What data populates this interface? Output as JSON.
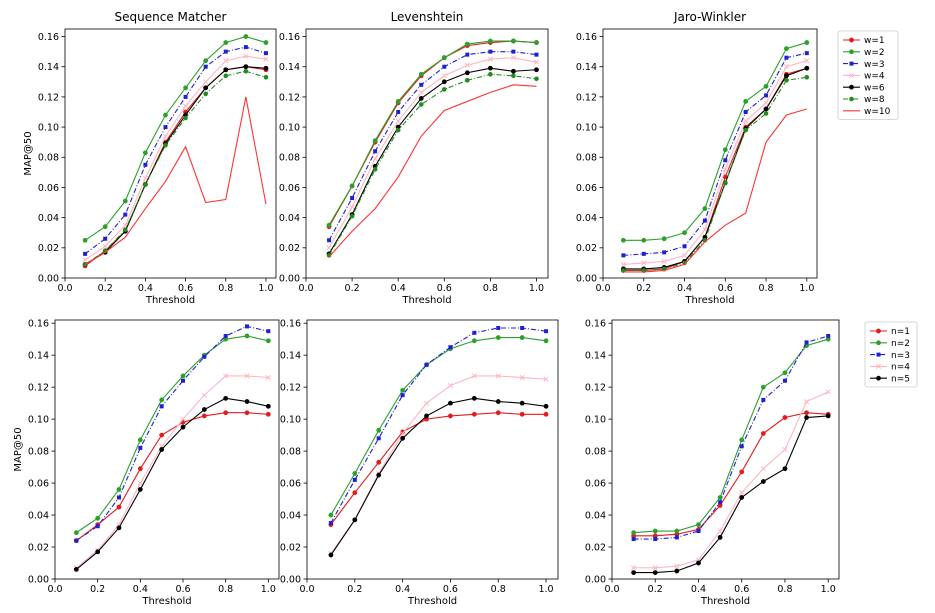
{
  "figure": {
    "x_tick_labels": [
      "0.0",
      "0.2",
      "0.4",
      "0.6",
      "0.8",
      "1.0"
    ],
    "y_tick_labels": [
      "0.00",
      "0.02",
      "0.04",
      "0.06",
      "0.08",
      "0.10",
      "0.12",
      "0.14",
      "0.16"
    ]
  },
  "colors": {
    "w=1": "#e41a1c",
    "w=2": "#2ca02c",
    "w=3": "#1f1fd6",
    "w=4": "#ffb6c1",
    "w=6": "#000000",
    "w=8": "#1e8c1e",
    "w=10": "#ff3333",
    "n=1": "#e41a1c",
    "n=2": "#2ca02c",
    "n=3": "#1f1fd6",
    "n=4": "#ffb6c1",
    "n=5": "#000000"
  },
  "chart_data": [
    {
      "type": "line",
      "title": "Sequence Matcher",
      "xlabel": "Threshold",
      "ylabel": "MAP@50",
      "xlim": [
        0.0,
        1.05
      ],
      "ylim": [
        0.0,
        0.165
      ],
      "x": [
        0.1,
        0.2,
        0.3,
        0.4,
        0.5,
        0.6,
        0.7,
        0.8,
        0.9,
        1.0
      ],
      "legend": "right",
      "series": [
        {
          "name": "w=1",
          "values": [
            0.008,
            0.018,
            0.031,
            0.062,
            0.09,
            0.11,
            0.126,
            0.138,
            0.14,
            0.138
          ]
        },
        {
          "name": "w=2",
          "values": [
            0.025,
            0.034,
            0.051,
            0.083,
            0.108,
            0.126,
            0.144,
            0.156,
            0.16,
            0.156
          ]
        },
        {
          "name": "w=3",
          "values": [
            0.016,
            0.026,
            0.042,
            0.075,
            0.1,
            0.12,
            0.14,
            0.15,
            0.153,
            0.149
          ]
        },
        {
          "name": "w=4",
          "values": [
            0.012,
            0.021,
            0.035,
            0.066,
            0.094,
            0.114,
            0.13,
            0.144,
            0.147,
            0.145
          ]
        },
        {
          "name": "w=6",
          "values": [
            0.009,
            0.017,
            0.031,
            0.062,
            0.089,
            0.108,
            0.126,
            0.138,
            0.14,
            0.139
          ]
        },
        {
          "name": "w=8",
          "values": [
            0.009,
            0.018,
            0.032,
            0.062,
            0.088,
            0.106,
            0.122,
            0.134,
            0.137,
            0.133
          ]
        },
        {
          "name": "w=10",
          "values": [
            0.009,
            0.017,
            0.027,
            0.046,
            0.064,
            0.087,
            0.05,
            0.052,
            0.12,
            0.049
          ]
        }
      ]
    },
    {
      "type": "line",
      "title": "Levenshtein",
      "xlabel": "Threshold",
      "ylabel": "",
      "xlim": [
        0.0,
        1.05
      ],
      "ylim": [
        0.0,
        0.165
      ],
      "x": [
        0.1,
        0.2,
        0.3,
        0.4,
        0.5,
        0.6,
        0.7,
        0.8,
        0.9,
        1.0
      ],
      "series": [
        {
          "name": "w=1",
          "values": [
            0.034,
            0.061,
            0.09,
            0.116,
            0.134,
            0.146,
            0.154,
            0.156,
            0.157,
            0.156
          ]
        },
        {
          "name": "w=2",
          "values": [
            0.035,
            0.061,
            0.091,
            0.117,
            0.135,
            0.146,
            0.155,
            0.157,
            0.157,
            0.156
          ]
        },
        {
          "name": "w=3",
          "values": [
            0.025,
            0.053,
            0.084,
            0.11,
            0.128,
            0.14,
            0.148,
            0.15,
            0.15,
            0.148
          ]
        },
        {
          "name": "w=4",
          "values": [
            0.02,
            0.047,
            0.079,
            0.104,
            0.123,
            0.134,
            0.141,
            0.145,
            0.146,
            0.143
          ]
        },
        {
          "name": "w=6",
          "values": [
            0.016,
            0.042,
            0.074,
            0.1,
            0.119,
            0.13,
            0.136,
            0.139,
            0.137,
            0.138
          ]
        },
        {
          "name": "w=8",
          "values": [
            0.015,
            0.041,
            0.072,
            0.098,
            0.115,
            0.125,
            0.131,
            0.135,
            0.134,
            0.132
          ]
        },
        {
          "name": "w=10",
          "values": [
            0.014,
            0.031,
            0.046,
            0.067,
            0.094,
            0.111,
            0.117,
            0.123,
            0.128,
            0.127
          ]
        }
      ]
    },
    {
      "type": "line",
      "title": "Jaro-Winkler",
      "xlabel": "Threshold",
      "ylabel": "",
      "xlim": [
        0.0,
        1.05
      ],
      "ylim": [
        0.0,
        0.165
      ],
      "x": [
        0.1,
        0.2,
        0.3,
        0.4,
        0.5,
        0.6,
        0.7,
        0.8,
        0.9,
        1.0
      ],
      "series": [
        {
          "name": "w=1",
          "values": [
            0.005,
            0.005,
            0.006,
            0.011,
            0.027,
            0.067,
            0.1,
            0.112,
            0.135,
            0.139
          ]
        },
        {
          "name": "w=2",
          "values": [
            0.025,
            0.025,
            0.026,
            0.03,
            0.046,
            0.085,
            0.117,
            0.127,
            0.152,
            0.156
          ]
        },
        {
          "name": "w=3",
          "values": [
            0.015,
            0.016,
            0.017,
            0.021,
            0.038,
            0.078,
            0.11,
            0.121,
            0.146,
            0.149
          ]
        },
        {
          "name": "w=4",
          "values": [
            0.009,
            0.01,
            0.011,
            0.015,
            0.032,
            0.072,
            0.104,
            0.116,
            0.14,
            0.144
          ]
        },
        {
          "name": "w=6",
          "values": [
            0.006,
            0.006,
            0.007,
            0.011,
            0.027,
            0.063,
            0.099,
            0.112,
            0.134,
            0.139
          ]
        },
        {
          "name": "w=8",
          "values": [
            0.005,
            0.005,
            0.006,
            0.01,
            0.025,
            0.063,
            0.098,
            0.109,
            0.131,
            0.133
          ]
        },
        {
          "name": "w=10",
          "values": [
            0.004,
            0.004,
            0.005,
            0.009,
            0.024,
            0.035,
            0.043,
            0.09,
            0.108,
            0.112
          ]
        }
      ]
    },
    {
      "type": "line",
      "title": "",
      "xlabel": "Threshold",
      "ylabel": "MAP@50",
      "xlim": [
        0.0,
        1.05
      ],
      "ylim": [
        0.0,
        0.162
      ],
      "x": [
        0.1,
        0.2,
        0.3,
        0.4,
        0.5,
        0.6,
        0.7,
        0.8,
        0.9,
        1.0
      ],
      "legend": "right",
      "series": [
        {
          "name": "n=1",
          "values": [
            0.024,
            0.034,
            0.045,
            0.069,
            0.09,
            0.098,
            0.102,
            0.104,
            0.104,
            0.103
          ]
        },
        {
          "name": "n=2",
          "values": [
            0.029,
            0.038,
            0.056,
            0.087,
            0.112,
            0.127,
            0.14,
            0.15,
            0.152,
            0.149
          ]
        },
        {
          "name": "n=3",
          "values": [
            0.024,
            0.033,
            0.051,
            0.082,
            0.108,
            0.124,
            0.139,
            0.152,
            0.158,
            0.155
          ]
        },
        {
          "name": "n=4",
          "values": [
            0.007,
            0.018,
            0.034,
            0.06,
            0.083,
            0.1,
            0.115,
            0.127,
            0.127,
            0.126
          ]
        },
        {
          "name": "n=5",
          "values": [
            0.006,
            0.017,
            0.032,
            0.056,
            0.081,
            0.095,
            0.106,
            0.113,
            0.111,
            0.108
          ]
        }
      ]
    },
    {
      "type": "line",
      "title": "",
      "xlabel": "Threshold",
      "ylabel": "",
      "xlim": [
        0.0,
        1.05
      ],
      "ylim": [
        0.0,
        0.162
      ],
      "x": [
        0.1,
        0.2,
        0.3,
        0.4,
        0.5,
        0.6,
        0.7,
        0.8,
        0.9,
        1.0
      ],
      "series": [
        {
          "name": "n=1",
          "values": [
            0.034,
            0.054,
            0.073,
            0.092,
            0.1,
            0.102,
            0.103,
            0.104,
            0.103,
            0.103
          ]
        },
        {
          "name": "n=2",
          "values": [
            0.04,
            0.066,
            0.093,
            0.118,
            0.134,
            0.144,
            0.149,
            0.151,
            0.151,
            0.149
          ]
        },
        {
          "name": "n=3",
          "values": [
            0.035,
            0.062,
            0.088,
            0.115,
            0.134,
            0.145,
            0.154,
            0.157,
            0.157,
            0.155
          ]
        },
        {
          "name": "n=4",
          "values": [
            0.016,
            0.037,
            0.066,
            0.091,
            0.11,
            0.121,
            0.127,
            0.127,
            0.126,
            0.125
          ]
        },
        {
          "name": "n=5",
          "values": [
            0.015,
            0.037,
            0.065,
            0.088,
            0.102,
            0.11,
            0.113,
            0.111,
            0.11,
            0.108
          ]
        }
      ]
    },
    {
      "type": "line",
      "title": "",
      "xlabel": "Threshold",
      "ylabel": "",
      "xlim": [
        0.0,
        1.05
      ],
      "ylim": [
        0.0,
        0.162
      ],
      "x": [
        0.1,
        0.2,
        0.3,
        0.4,
        0.5,
        0.6,
        0.7,
        0.8,
        0.9,
        1.0
      ],
      "legend": "right",
      "series": [
        {
          "name": "n=1",
          "values": [
            0.027,
            0.027,
            0.028,
            0.031,
            0.046,
            0.067,
            0.091,
            0.101,
            0.104,
            0.103
          ]
        },
        {
          "name": "n=2",
          "values": [
            0.029,
            0.03,
            0.03,
            0.034,
            0.051,
            0.087,
            0.12,
            0.129,
            0.146,
            0.15
          ]
        },
        {
          "name": "n=3",
          "values": [
            0.025,
            0.025,
            0.026,
            0.03,
            0.048,
            0.083,
            0.112,
            0.124,
            0.148,
            0.152
          ]
        },
        {
          "name": "n=4",
          "values": [
            0.007,
            0.007,
            0.008,
            0.012,
            0.03,
            0.054,
            0.069,
            0.081,
            0.111,
            0.117
          ]
        },
        {
          "name": "n=5",
          "values": [
            0.004,
            0.004,
            0.005,
            0.01,
            0.026,
            0.051,
            0.061,
            0.069,
            0.101,
            0.102
          ]
        }
      ]
    }
  ]
}
